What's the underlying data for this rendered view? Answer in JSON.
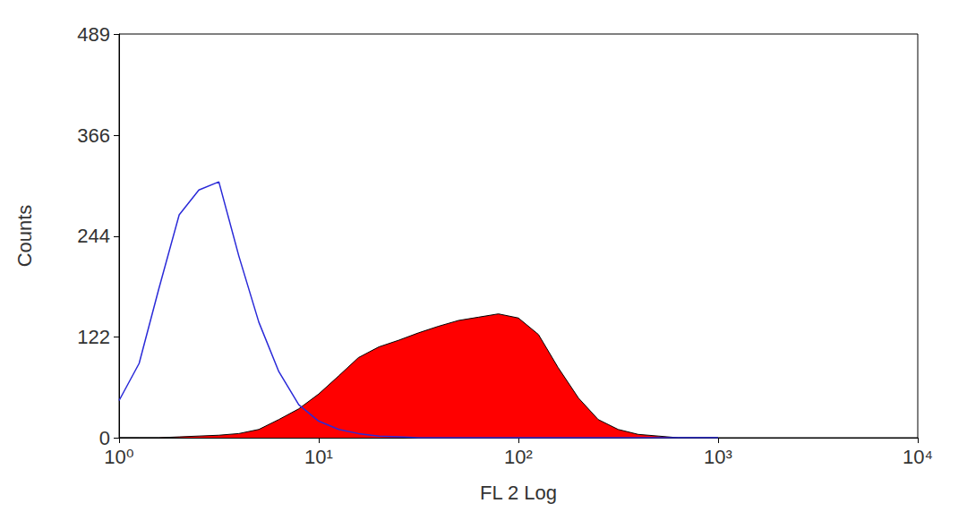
{
  "chart_data": {
    "type": "line",
    "x_label": "FL 2 Log",
    "y_label": "Counts",
    "log": "x",
    "grid": false,
    "xlim": [
      1,
      10000
    ],
    "xticks": [
      {
        "value": 1,
        "label": "10⁰"
      },
      {
        "value": 10,
        "label": "10¹"
      },
      {
        "value": 100,
        "label": "10²"
      },
      {
        "value": 1000,
        "label": "10³"
      },
      {
        "value": 10000,
        "label": "10⁴"
      }
    ],
    "ylim": [
      0,
      489
    ],
    "yticks": [
      0,
      122,
      244,
      366,
      489
    ],
    "x": [
      1,
      1.26,
      1.58,
      2.0,
      2.51,
      3.16,
      3.98,
      5.01,
      6.31,
      7.94,
      10,
      12.6,
      15.8,
      20,
      25.1,
      31.6,
      39.8,
      50.1,
      63.1,
      79.4,
      100,
      126,
      158,
      200,
      251,
      316,
      398,
      501,
      631,
      794,
      1000
    ],
    "series": [
      {
        "type": "area",
        "color": "#ff0000",
        "values": [
          0,
          0,
          0,
          1,
          2,
          3,
          5,
          10,
          22,
          35,
          53,
          75,
          97,
          110,
          118,
          127,
          135,
          142,
          146,
          150,
          145,
          125,
          85,
          48,
          22,
          10,
          4,
          2,
          0,
          0,
          0
        ]
      },
      {
        "type": "line",
        "color": "#2a2ad8",
        "values": [
          45,
          90,
          180,
          270,
          300,
          310,
          220,
          140,
          80,
          40,
          20,
          10,
          5,
          2,
          1,
          0,
          0,
          0,
          0,
          0,
          0,
          0,
          0,
          0,
          0,
          0,
          0,
          0,
          0,
          0,
          0
        ]
      }
    ]
  }
}
